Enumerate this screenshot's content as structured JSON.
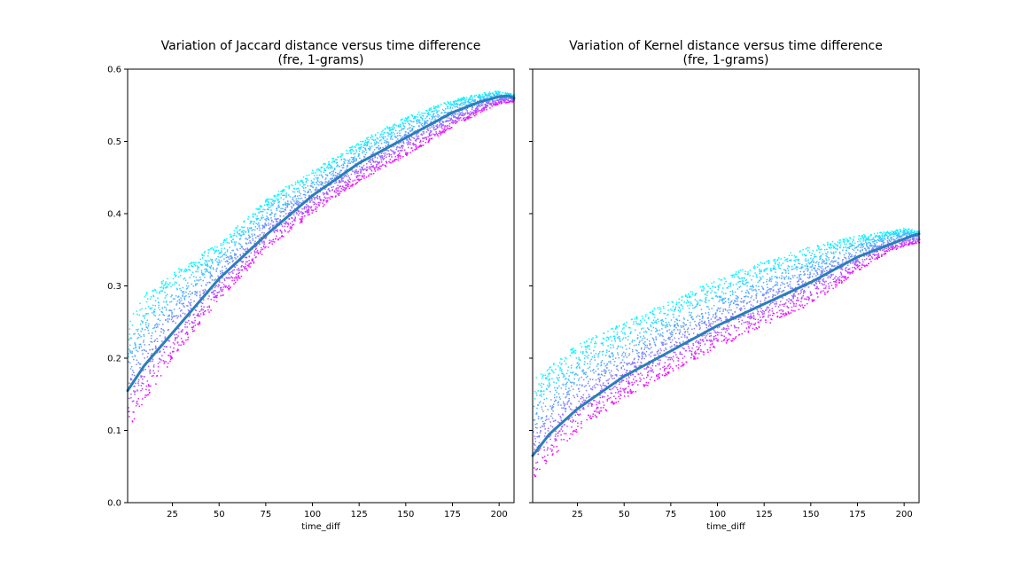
{
  "chart_data": [
    {
      "type": "scatter",
      "title": "Variation of Jaccard distance versus time difference",
      "subtitle": "(fre, 1-grams)",
      "xlabel": "time_diff",
      "ylabel": "",
      "xlim": [
        1,
        208
      ],
      "ylim": [
        0.0,
        0.6
      ],
      "x_ticks": [
        "25",
        "50",
        "75",
        "100",
        "125",
        "150",
        "175",
        "200"
      ],
      "y_ticks": [
        "0.0",
        "0.1",
        "0.2",
        "0.3",
        "0.4",
        "0.5",
        "0.6"
      ],
      "grid": false,
      "colormap": [
        "#ff00ff",
        "#8080ff",
        "#00ffff"
      ],
      "trend_color": "#2a7fb8",
      "series": [
        {
          "type": "line",
          "x": [
            1,
            10,
            25,
            50,
            75,
            100,
            125,
            150,
            175,
            190,
            200,
            205,
            208
          ],
          "values": [
            0.155,
            0.19,
            0.235,
            0.31,
            0.37,
            0.425,
            0.47,
            0.505,
            0.54,
            0.555,
            0.562,
            0.563,
            0.56
          ]
        },
        {
          "type": "scatter_band",
          "x": [
            1,
            10,
            25,
            50,
            75,
            100,
            125,
            150,
            175,
            190,
            200,
            208
          ],
          "low": [
            0.1,
            0.14,
            0.2,
            0.28,
            0.35,
            0.4,
            0.445,
            0.48,
            0.52,
            0.54,
            0.552,
            0.555
          ],
          "high": [
            0.25,
            0.29,
            0.32,
            0.36,
            0.42,
            0.46,
            0.5,
            0.535,
            0.558,
            0.567,
            0.57,
            0.565
          ]
        }
      ]
    },
    {
      "type": "scatter",
      "title": "Variation of Kernel distance versus time difference",
      "subtitle": "(fre, 1-grams)",
      "xlabel": "time_diff",
      "ylabel": "",
      "xlim": [
        1,
        208
      ],
      "ylim": [
        0.0,
        0.6
      ],
      "x_ticks": [
        "25",
        "50",
        "75",
        "100",
        "125",
        "150",
        "175",
        "200"
      ],
      "y_ticks": [
        "0.0",
        "0.1",
        "0.2",
        "0.3",
        "0.4",
        "0.5",
        "0.6"
      ],
      "grid": false,
      "colormap": [
        "#ff00ff",
        "#8080ff",
        "#00ffff"
      ],
      "trend_color": "#2a7fb8",
      "series": [
        {
          "type": "line",
          "x": [
            1,
            10,
            25,
            50,
            75,
            100,
            125,
            150,
            175,
            190,
            200,
            205,
            208
          ],
          "values": [
            0.065,
            0.095,
            0.13,
            0.175,
            0.21,
            0.245,
            0.275,
            0.305,
            0.34,
            0.355,
            0.365,
            0.37,
            0.372
          ]
        },
        {
          "type": "scatter_band",
          "x": [
            1,
            10,
            25,
            50,
            75,
            100,
            125,
            150,
            175,
            190,
            200,
            208
          ],
          "low": [
            0.03,
            0.06,
            0.1,
            0.145,
            0.18,
            0.215,
            0.245,
            0.275,
            0.32,
            0.345,
            0.355,
            0.36
          ],
          "high": [
            0.17,
            0.19,
            0.22,
            0.25,
            0.28,
            0.31,
            0.335,
            0.355,
            0.37,
            0.375,
            0.38,
            0.376
          ]
        }
      ]
    }
  ]
}
